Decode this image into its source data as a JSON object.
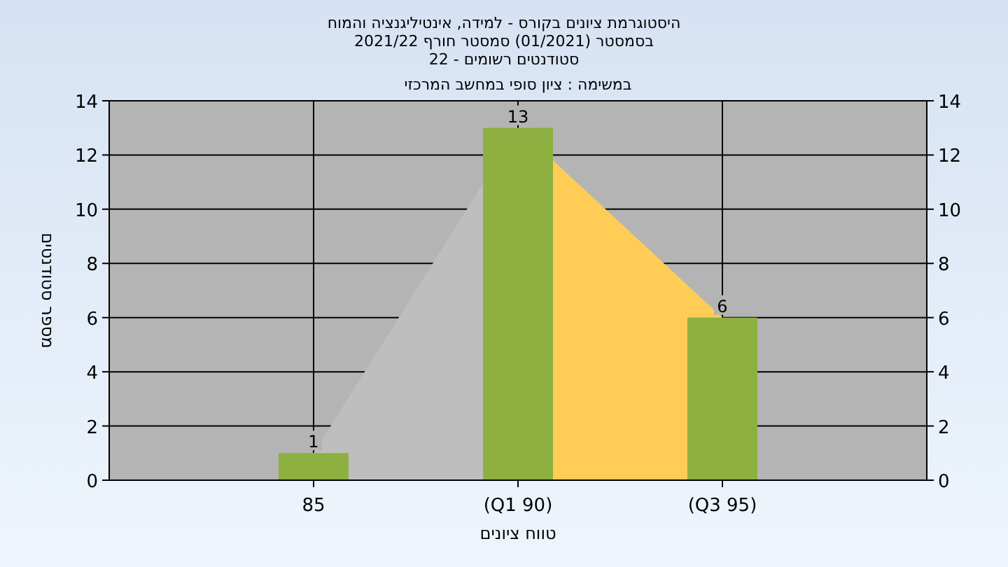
{
  "chart_data": {
    "type": "bar",
    "title": "היסטוגרמת ציונים בקורס - למידה, אינטיליגנציה והמוח",
    "subtitle": "בסמסטר (01/2021) סמסטר חורף 2021/22",
    "annotations": [
      "סטודנטים רשומים - 22",
      "במשימה : ציון סופי במחשב המרכזי"
    ],
    "xlabel": "טווח ציונים",
    "ylabel": "מספר סטודנטים",
    "categories": [
      "85",
      "(Q1 90)",
      "(Q3 95)"
    ],
    "series": [
      {
        "type": "area",
        "color": "#bebebe",
        "values": [
          1,
          13,
          null
        ]
      },
      {
        "type": "area",
        "color": "#ffcc55",
        "values": [
          null,
          13,
          6
        ]
      },
      {
        "color": "#8db040",
        "values": [
          1,
          13,
          6
        ],
        "value_labels": [
          "1",
          "13",
          "6"
        ]
      }
    ],
    "ylim": [
      0,
      14
    ],
    "yticks": [
      0,
      2,
      4,
      6,
      8,
      10,
      12,
      14
    ],
    "y2lim": [
      0,
      14
    ],
    "y2ticks": [
      0,
      2,
      4,
      6,
      8,
      10,
      12,
      14
    ],
    "grid": true
  }
}
